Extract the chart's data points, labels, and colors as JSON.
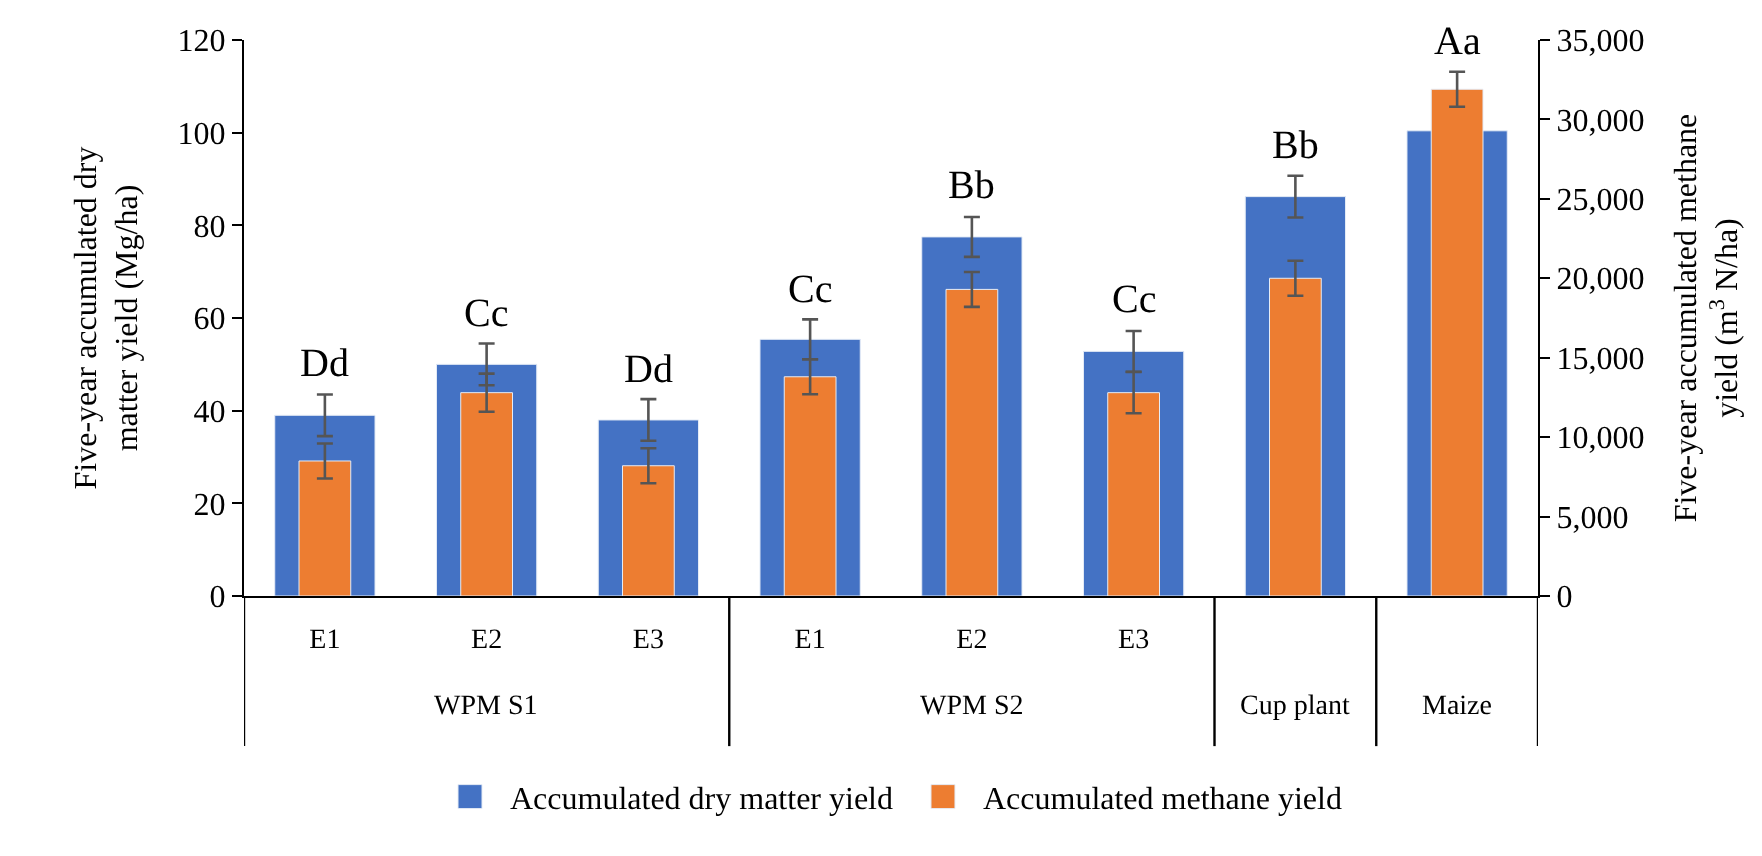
{
  "chart_data": {
    "type": "bar",
    "categories": [
      "E1",
      "E2",
      "E3",
      "E1",
      "E2",
      "E3",
      null,
      null
    ],
    "ylabel": "Five-year accumulated dry matter yield (Mg/ha)",
    "y2label": "Five-year accumulated methane yield (m$^{3}$ N/ha)",
    "annotations": [
      "WPM S1",
      "WPM S2",
      "Cup plant",
      "Maize"
    ],
    "ylim": [
      0,
      120
    ],
    "yticks": [
      0,
      20,
      40,
      60,
      80,
      100,
      120
    ],
    "y2lim": [
      0,
      35000
    ],
    "y2ticks": [
      {
        "value": 0,
        "label": "0"
      },
      {
        "value": 5000,
        "label": "5,000"
      },
      {
        "value": 10000,
        "label": "10,000"
      },
      {
        "value": 15000,
        "label": "15,000"
      },
      {
        "value": 20000,
        "label": "20,000"
      },
      {
        "value": 25000,
        "label": "25,000"
      },
      {
        "value": 30000,
        "label": "30,000"
      },
      {
        "value": 35000,
        "label": "35,000"
      }
    ],
    "legend": "bottom",
    "series": [
      {
        "name": "Accumulated dry matter yield",
        "color": "#4472c4",
        "values": [
          39,
          50,
          38,
          55.4,
          77.5,
          52.8,
          86.2,
          100.4
        ],
        "errors": [
          4.5,
          4.5,
          4.5,
          4.3,
          4.3,
          4.4,
          4.5,
          null
        ],
        "value_labels": [
          "Dd",
          "Cc",
          "Dd",
          "Cc",
          "Bb",
          "Cc",
          "Bb",
          "Aa"
        ]
      },
      {
        "name": "Accumulated methane yield",
        "color": "#ed7d31",
        "axis": "y2",
        "values": [
          8500,
          12800,
          8200,
          13800,
          19300,
          12800,
          20000,
          31900
        ],
        "errors": [
          1100,
          1200,
          1100,
          1100,
          1100,
          1300,
          1100,
          1100
        ]
      }
    ]
  }
}
